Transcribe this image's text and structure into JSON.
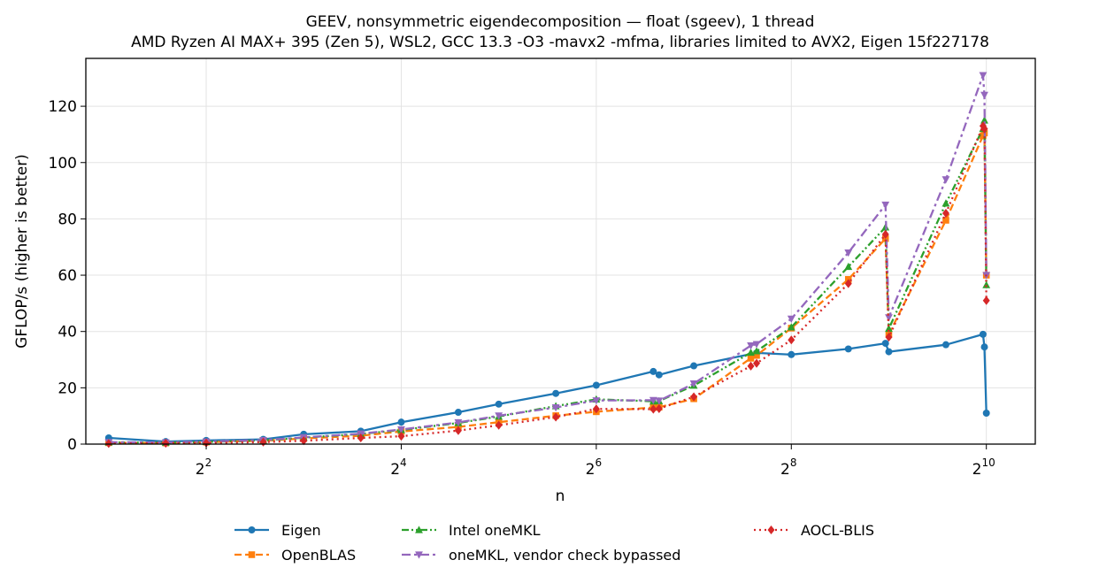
{
  "chart_data": {
    "type": "line",
    "title": "GEEV, nonsymmetric eigendecomposition — float (sgeev), 1 thread",
    "subtitle": "AMD Ryzen AI MAX+ 395 (Zen 5), WSL2, GCC 13.3 -O3 -mavx2 -mfma, libraries limited to AVX2, Eigen 15f227178",
    "xlabel": "n",
    "ylabel": "GFLOP/s (higher is better)",
    "xscale": "log2",
    "xlim": [
      1.7,
      1450
    ],
    "ylim": [
      0,
      137
    ],
    "xticks": [
      {
        "value": 4,
        "base": "2",
        "exp": "2"
      },
      {
        "value": 16,
        "base": "2",
        "exp": "4"
      },
      {
        "value": 64,
        "base": "2",
        "exp": "6"
      },
      {
        "value": 256,
        "base": "2",
        "exp": "8"
      },
      {
        "value": 1024,
        "base": "2",
        "exp": "10"
      }
    ],
    "yticks": [
      0,
      20,
      40,
      60,
      80,
      100,
      120
    ],
    "grid": true,
    "legend_position": "bottom",
    "series": [
      {
        "name": "Eigen",
        "color": "#1f77b4",
        "dash": "",
        "marker": "circle",
        "x": [
          2,
          3,
          4,
          6,
          8,
          12,
          16,
          24,
          32,
          48,
          64,
          96,
          100,
          128,
          200,
          256,
          384,
          500,
          512,
          768,
          1000,
          1010,
          1024
        ],
        "y": [
          2.2,
          0.9,
          1.3,
          1.7,
          3.5,
          4.6,
          7.8,
          11.3,
          14.2,
          18.0,
          20.9,
          25.8,
          24.6,
          27.8,
          32.4,
          31.8,
          33.8,
          35.8,
          32.8,
          35.3,
          39.0,
          34.5,
          11.0
        ]
      },
      {
        "name": "OpenBLAS",
        "color": "#ff7f0e",
        "dash": "8,4",
        "marker": "square",
        "x": [
          2,
          3,
          4,
          6,
          8,
          12,
          16,
          24,
          32,
          48,
          64,
          96,
          100,
          128,
          192,
          200,
          256,
          384,
          500,
          512,
          768,
          1000,
          1010,
          1024
        ],
        "y": [
          0.5,
          0.4,
          0.7,
          1.2,
          2.0,
          3.0,
          4.5,
          6.1,
          7.8,
          10.1,
          11.5,
          13.0,
          13.1,
          16.1,
          30.5,
          31.5,
          41.2,
          58.5,
          73.0,
          39.0,
          79.5,
          109.5,
          110.5,
          60.0
        ]
      },
      {
        "name": "Intel oneMKL",
        "color": "#2ca02c",
        "dash": "8,3,2,3,2,3",
        "marker": "triangle-up",
        "x": [
          2,
          3,
          4,
          6,
          8,
          12,
          16,
          24,
          32,
          48,
          64,
          96,
          100,
          128,
          192,
          200,
          256,
          384,
          500,
          512,
          768,
          1000,
          1010,
          1024
        ],
        "y": [
          0.6,
          0.5,
          0.8,
          1.3,
          2.3,
          3.6,
          5.0,
          7.5,
          9.8,
          13.5,
          15.9,
          15.2,
          15.3,
          20.8,
          32.5,
          33.0,
          41.5,
          63.0,
          77.0,
          41.0,
          85.5,
          112.0,
          115.0,
          56.5
        ]
      },
      {
        "name": "oneMKL, vendor check bypassed",
        "color": "#9467bd",
        "dash": "10,4,3,4",
        "marker": "triangle-down",
        "x": [
          2,
          3,
          4,
          6,
          8,
          12,
          16,
          24,
          32,
          48,
          64,
          96,
          100,
          128,
          192,
          200,
          256,
          384,
          500,
          512,
          768,
          1000,
          1010,
          1024
        ],
        "y": [
          0.7,
          0.6,
          0.9,
          1.4,
          2.4,
          3.7,
          5.2,
          7.7,
          10.1,
          13.0,
          15.5,
          15.6,
          15.4,
          21.5,
          35.0,
          35.5,
          44.5,
          68.0,
          85.0,
          45.0,
          94.0,
          131.0,
          124.0,
          60.0
        ]
      },
      {
        "name": "AOCL-BLIS",
        "color": "#d62728",
        "dash": "2,4",
        "marker": "diamond",
        "x": [
          2,
          3,
          4,
          6,
          8,
          12,
          16,
          24,
          32,
          48,
          64,
          96,
          100,
          128,
          192,
          200,
          256,
          384,
          500,
          512,
          768,
          1000,
          1010,
          1024
        ],
        "y": [
          0.2,
          0.3,
          0.4,
          0.7,
          1.2,
          2.2,
          2.8,
          4.8,
          6.7,
          9.6,
          12.5,
          12.4,
          12.6,
          16.8,
          27.7,
          28.7,
          37.0,
          57.0,
          74.5,
          38.0,
          82.0,
          113.0,
          112.0,
          51.0
        ]
      }
    ]
  }
}
